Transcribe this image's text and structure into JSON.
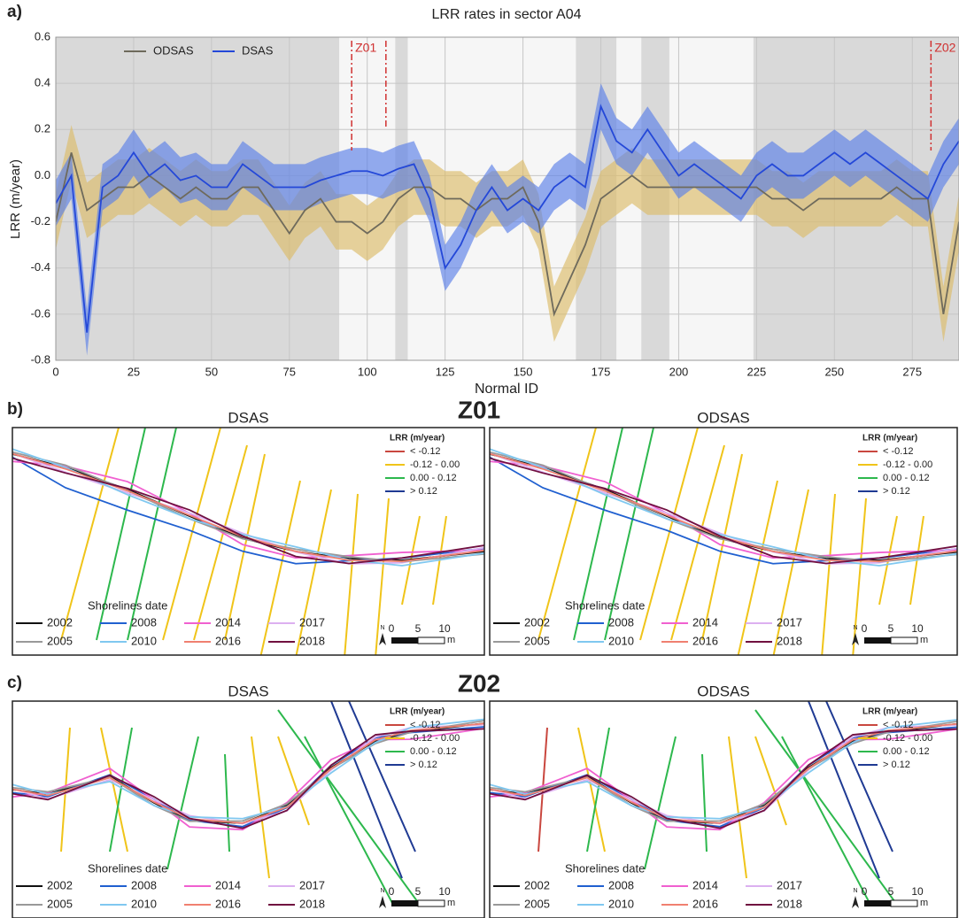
{
  "chart_data": {
    "type": "line",
    "label": "a)",
    "title": "LRR rates in sector A04",
    "x_label": "Normal ID",
    "y_label": "LRR (m/year)",
    "x": [
      0,
      5,
      10,
      15,
      20,
      25,
      30,
      35,
      40,
      45,
      50,
      55,
      60,
      65,
      70,
      75,
      80,
      85,
      90,
      95,
      100,
      105,
      110,
      115,
      120,
      125,
      130,
      135,
      140,
      145,
      150,
      155,
      160,
      165,
      170,
      175,
      180,
      185,
      190,
      195,
      200,
      205,
      210,
      215,
      220,
      225,
      230,
      235,
      240,
      245,
      250,
      255,
      260,
      265,
      270,
      275,
      280,
      285,
      290
    ],
    "series": [
      {
        "name": "ODSAS",
        "color": "#6e6a5c",
        "band_color": "#dcbc68",
        "values": [
          -0.2,
          0.1,
          -0.15,
          -0.1,
          -0.05,
          -0.05,
          0.0,
          -0.05,
          -0.1,
          -0.05,
          -0.1,
          -0.1,
          -0.05,
          -0.05,
          -0.15,
          -0.25,
          -0.15,
          -0.1,
          -0.2,
          -0.2,
          -0.25,
          -0.2,
          -0.1,
          -0.05,
          -0.05,
          -0.1,
          -0.1,
          -0.15,
          -0.1,
          -0.1,
          -0.05,
          -0.2,
          -0.6,
          -0.45,
          -0.3,
          -0.1,
          -0.05,
          0.0,
          -0.05,
          -0.05,
          -0.05,
          -0.05,
          -0.05,
          -0.05,
          -0.05,
          -0.05,
          -0.1,
          -0.1,
          -0.15,
          -0.1,
          -0.1,
          -0.1,
          -0.1,
          -0.1,
          -0.05,
          -0.1,
          -0.1,
          -0.6,
          -0.2
        ],
        "upper": [
          -0.08,
          0.22,
          -0.03,
          0.02,
          0.07,
          0.07,
          0.12,
          0.07,
          0.02,
          0.07,
          0.02,
          0.02,
          0.07,
          0.07,
          -0.03,
          -0.13,
          -0.03,
          0.02,
          -0.08,
          -0.08,
          -0.13,
          -0.08,
          0.02,
          0.07,
          0.07,
          0.02,
          0.02,
          -0.03,
          0.02,
          0.02,
          0.07,
          -0.08,
          -0.48,
          -0.33,
          -0.18,
          0.02,
          0.07,
          0.12,
          0.07,
          0.07,
          0.07,
          0.07,
          0.07,
          0.07,
          0.07,
          0.07,
          0.02,
          0.02,
          -0.03,
          0.02,
          0.02,
          0.02,
          0.02,
          0.02,
          0.07,
          0.02,
          0.02,
          -0.48,
          -0.08
        ],
        "lower": [
          -0.32,
          -0.02,
          -0.27,
          -0.22,
          -0.17,
          -0.17,
          -0.12,
          -0.17,
          -0.22,
          -0.17,
          -0.22,
          -0.22,
          -0.17,
          -0.17,
          -0.27,
          -0.37,
          -0.27,
          -0.22,
          -0.32,
          -0.32,
          -0.37,
          -0.32,
          -0.22,
          -0.17,
          -0.17,
          -0.22,
          -0.22,
          -0.27,
          -0.22,
          -0.22,
          -0.17,
          -0.32,
          -0.72,
          -0.57,
          -0.42,
          -0.22,
          -0.17,
          -0.12,
          -0.17,
          -0.17,
          -0.17,
          -0.17,
          -0.17,
          -0.17,
          -0.17,
          -0.17,
          -0.22,
          -0.22,
          -0.27,
          -0.22,
          -0.22,
          -0.22,
          -0.22,
          -0.22,
          -0.17,
          -0.22,
          -0.22,
          -0.72,
          -0.32
        ]
      },
      {
        "name": "DSAS",
        "color": "#2448d8",
        "band_color": "#5b7fe8",
        "values": [
          -0.12,
          0.0,
          -0.68,
          -0.05,
          0.0,
          0.1,
          0.0,
          0.05,
          -0.02,
          0.0,
          -0.05,
          -0.05,
          0.05,
          0.0,
          -0.05,
          -0.05,
          -0.05,
          -0.02,
          0.0,
          0.02,
          0.02,
          0.0,
          0.03,
          0.05,
          -0.1,
          -0.4,
          -0.3,
          -0.15,
          -0.05,
          -0.15,
          -0.1,
          -0.15,
          -0.05,
          0.0,
          -0.05,
          0.3,
          0.15,
          0.1,
          0.2,
          0.1,
          0.0,
          0.05,
          0.0,
          -0.05,
          -0.1,
          0.0,
          0.05,
          0.0,
          0.0,
          0.05,
          0.1,
          0.05,
          0.1,
          0.05,
          0.0,
          -0.05,
          -0.1,
          0.05,
          0.15
        ],
        "upper": [
          -0.02,
          0.1,
          -0.58,
          0.05,
          0.1,
          0.2,
          0.1,
          0.15,
          0.08,
          0.1,
          0.05,
          0.05,
          0.15,
          0.1,
          0.05,
          0.05,
          0.05,
          0.08,
          0.1,
          0.12,
          0.12,
          0.1,
          0.13,
          0.15,
          0.0,
          -0.3,
          -0.2,
          -0.05,
          0.05,
          -0.05,
          0.0,
          -0.05,
          0.05,
          0.1,
          0.05,
          0.4,
          0.25,
          0.2,
          0.3,
          0.2,
          0.1,
          0.15,
          0.1,
          0.05,
          0.0,
          0.1,
          0.15,
          0.1,
          0.1,
          0.15,
          0.2,
          0.15,
          0.2,
          0.15,
          0.1,
          0.05,
          0.0,
          0.15,
          0.25
        ],
        "lower": [
          -0.22,
          -0.1,
          -0.78,
          -0.15,
          -0.1,
          0.0,
          -0.1,
          -0.05,
          -0.12,
          -0.1,
          -0.15,
          -0.15,
          -0.05,
          -0.1,
          -0.15,
          -0.15,
          -0.15,
          -0.12,
          -0.1,
          -0.08,
          -0.08,
          -0.1,
          -0.07,
          -0.05,
          -0.2,
          -0.5,
          -0.4,
          -0.25,
          -0.15,
          -0.25,
          -0.2,
          -0.25,
          -0.15,
          -0.1,
          -0.15,
          0.2,
          0.05,
          0.0,
          0.1,
          0.0,
          -0.1,
          -0.05,
          -0.1,
          -0.15,
          -0.2,
          -0.1,
          -0.05,
          -0.1,
          -0.1,
          -0.05,
          0.0,
          -0.05,
          0.0,
          -0.05,
          -0.1,
          -0.15,
          -0.2,
          -0.05,
          0.05
        ]
      }
    ],
    "xlim": [
      0,
      290
    ],
    "xticks": [
      0,
      25,
      50,
      75,
      100,
      125,
      150,
      175,
      200,
      225,
      250,
      275
    ],
    "ylim": [
      -0.8,
      0.6
    ],
    "yticks": [
      -0.8,
      -0.6,
      -0.4,
      -0.2,
      {
        "value": 0,
        "label": "0.0"
      },
      0.2,
      0.4,
      0.6
    ],
    "grid": true,
    "legend": "upper left",
    "shaded_regions": [
      [
        0,
        91
      ],
      [
        109,
        113
      ],
      [
        167,
        180
      ],
      [
        188,
        197
      ],
      [
        224,
        290
      ]
    ],
    "shaded_color": "#d9d9d9",
    "annotations": [
      {
        "text": "Z01",
        "x": [
          95,
          106
        ],
        "color": "#d03030"
      },
      {
        "text": "Z02",
        "x": [
          281
        ],
        "color": "#d03030"
      }
    ]
  },
  "maps": [
    {
      "label": "b)",
      "zone": "Z01",
      "panels": [
        "DSAS",
        "ODSAS"
      ]
    },
    {
      "label": "c)",
      "zone": "Z02",
      "panels": [
        "DSAS",
        "ODSAS"
      ]
    }
  ],
  "map_legend": {
    "title": "LRR (m/year)",
    "classes": [
      {
        "label": "< -0.12",
        "color": "#c9473f"
      },
      {
        "label": "-0.12 - 0.00",
        "color": "#f0c419"
      },
      {
        "label": "0.00 - 0.12",
        "color": "#2db84d"
      },
      {
        "label": "> 0.12",
        "color": "#1f3a93"
      }
    ]
  },
  "shorelines": {
    "title": "Shorelines date",
    "years": [
      {
        "label": "2002",
        "color": "#111111"
      },
      {
        "label": "2008",
        "color": "#2060d0"
      },
      {
        "label": "2014",
        "color": "#f060d0"
      },
      {
        "label": "2017",
        "color": "#dcb0f0"
      },
      {
        "label": "2005",
        "color": "#999999"
      },
      {
        "label": "2010",
        "color": "#80c8f0"
      },
      {
        "label": "2016",
        "color": "#f08070"
      },
      {
        "label": "2018",
        "color": "#701040"
      }
    ]
  },
  "scale": {
    "ticks": [
      "0",
      "5",
      "10"
    ],
    "unit": "m",
    "north": "N"
  }
}
